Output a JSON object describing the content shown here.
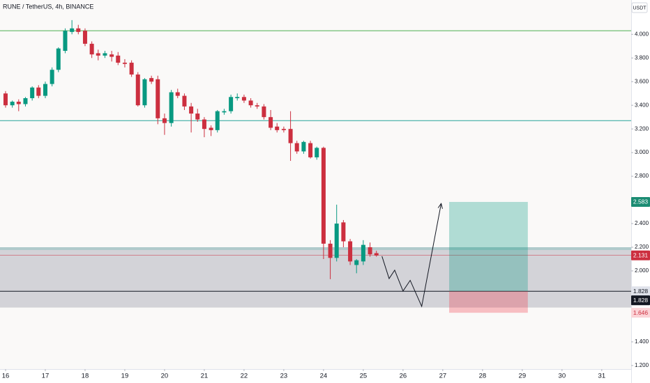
{
  "chart_data": {
    "type": "candlestick",
    "title": "RUNE / TetherUS, 4h, BINANCE",
    "currency": "USDT",
    "x": [
      16,
      16.17,
      16.33,
      16.5,
      16.67,
      16.83,
      17,
      17.17,
      17.33,
      17.5,
      17.67,
      17.83,
      18,
      18.17,
      18.33,
      18.5,
      18.67,
      18.83,
      19,
      19.17,
      19.33,
      19.5,
      19.67,
      19.83,
      20,
      20.17,
      20.33,
      20.5,
      20.67,
      20.83,
      21,
      21.17,
      21.33,
      21.5,
      21.67,
      21.83,
      22,
      22.17,
      22.33,
      22.5,
      22.67,
      22.83,
      23,
      23.17,
      23.33,
      23.5,
      23.67,
      23.83,
      24,
      24.17,
      24.33,
      24.5,
      24.67,
      24.83,
      25,
      25.17,
      25.33
    ],
    "open": [
      3.5,
      3.4,
      3.43,
      3.41,
      3.46,
      3.55,
      3.48,
      3.58,
      3.7,
      3.86,
      4.02,
      4.05,
      4.03,
      3.92,
      3.84,
      3.82,
      3.83,
      3.82,
      3.76,
      3.76,
      3.66,
      3.4,
      3.63,
      3.62,
      3.29,
      3.25,
      3.51,
      3.48,
      3.39,
      3.33,
      3.28,
      3.21,
      3.19,
      3.34,
      3.35,
      3.46,
      3.47,
      3.44,
      3.4,
      3.39,
      3.3,
      3.22,
      3.2,
      3.2,
      3.08,
      3.01,
      3.08,
      2.96,
      3.04,
      2.23,
      2.11,
      2.41,
      2.25,
      2.05,
      2.08,
      2.2,
      2.15
    ],
    "high": [
      3.52,
      3.44,
      3.45,
      3.47,
      3.56,
      3.57,
      3.6,
      3.72,
      3.89,
      4.05,
      4.12,
      4.08,
      4.05,
      3.94,
      3.87,
      3.86,
      3.86,
      3.85,
      3.79,
      3.78,
      3.68,
      3.63,
      3.65,
      3.65,
      3.33,
      3.53,
      3.54,
      3.5,
      3.42,
      3.37,
      3.3,
      3.23,
      3.36,
      3.37,
      3.49,
      3.5,
      3.49,
      3.46,
      3.42,
      3.41,
      3.36,
      3.25,
      3.22,
      3.35,
      3.1,
      3.1,
      3.1,
      3.05,
      3.05,
      2.26,
      2.56,
      2.43,
      2.27,
      2.1,
      2.26,
      2.24,
      2.17
    ],
    "low": [
      3.38,
      3.38,
      3.35,
      3.39,
      3.44,
      3.46,
      3.46,
      3.56,
      3.68,
      3.84,
      4.0,
      4.0,
      3.9,
      3.8,
      3.78,
      3.8,
      3.77,
      3.74,
      3.72,
      3.64,
      3.39,
      3.38,
      3.58,
      3.24,
      3.15,
      3.22,
      3.46,
      3.36,
      3.17,
      3.26,
      3.13,
      3.14,
      3.17,
      3.32,
      3.33,
      3.44,
      3.42,
      3.38,
      3.37,
      3.28,
      3.19,
      3.17,
      3.17,
      2.93,
      2.99,
      2.99,
      2.95,
      2.94,
      2.1,
      1.93,
      2.08,
      2.2,
      2.05,
      1.98,
      2.05,
      2.12,
      2.12
    ],
    "close": [
      3.4,
      3.43,
      3.41,
      3.46,
      3.55,
      3.48,
      3.58,
      3.7,
      3.88,
      4.03,
      4.05,
      4.02,
      3.92,
      3.83,
      3.82,
      3.84,
      3.81,
      3.76,
      3.75,
      3.66,
      3.4,
      3.62,
      3.6,
      3.29,
      3.25,
      3.51,
      3.48,
      3.39,
      3.33,
      3.28,
      3.2,
      3.19,
      3.35,
      3.35,
      3.47,
      3.47,
      3.44,
      3.4,
      3.39,
      3.3,
      3.21,
      3.19,
      3.19,
      3.08,
      3.01,
      3.09,
      2.96,
      3.04,
      2.23,
      2.11,
      2.4,
      2.25,
      2.08,
      2.09,
      2.22,
      2.14,
      2.13
    ],
    "up_color": "#089981",
    "down_color": "#cc2f3f",
    "xlim": [
      15.86,
      31.74
    ],
    "xticks": [
      16,
      17,
      18,
      19,
      20,
      21,
      22,
      23,
      24,
      25,
      26,
      27,
      28,
      29,
      30,
      31
    ],
    "ylim": [
      1.17,
      4.29
    ],
    "yticks": [
      {
        "value": 1.2,
        "label": "1.200"
      },
      {
        "value": 1.4,
        "label": "1.400"
      },
      {
        "value": 2.0,
        "label": "2.000"
      },
      {
        "value": 2.2,
        "label": "2.200"
      },
      {
        "value": 2.4,
        "label": "2.400"
      },
      {
        "value": 2.8,
        "label": "2.800"
      },
      {
        "value": 3.0,
        "label": "3.000"
      },
      {
        "value": 3.2,
        "label": "3.200"
      },
      {
        "value": 3.4,
        "label": "3.400"
      },
      {
        "value": 3.6,
        "label": "3.600"
      },
      {
        "value": 3.8,
        "label": "3.800"
      },
      {
        "value": 4.0,
        "label": "4.000"
      }
    ],
    "grid": false,
    "levels": [
      {
        "value": 4.03,
        "color": "#4caf50"
      },
      {
        "value": 3.27,
        "color": "#26a69a"
      },
      {
        "value": 1.828,
        "color": "#131722"
      }
    ],
    "zone": {
      "top": 2.2,
      "bottom": 1.69,
      "color": "#b2b5be"
    },
    "last_price": 2.131,
    "position": {
      "x": [
        27.16,
        29.14
      ],
      "target": 2.583,
      "entry": 1.828,
      "stop": 1.646
    },
    "projection": {
      "x": [
        25.47,
        25.65,
        25.79,
        26.0,
        26.18,
        26.47,
        26.96
      ],
      "y": [
        2.124,
        1.935,
        2.006,
        1.83,
        1.92,
        1.7,
        2.57
      ]
    }
  }
}
